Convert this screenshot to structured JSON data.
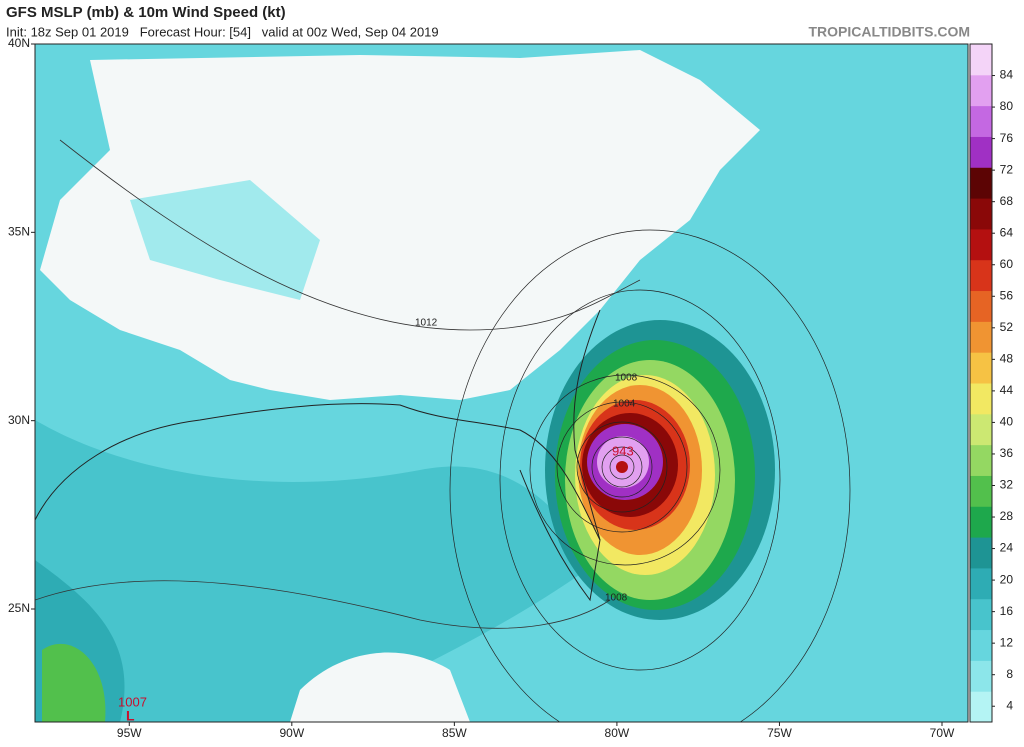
{
  "header": {
    "title": "GFS MSLP (mb) & 10m Wind Speed (kt)",
    "subtitle": "Init: 18z Sep 01 2019   Forecast Hour: [54]   valid at 00z Wed, Sep 04 2019",
    "site": "TROPICALTIDBITS.COM"
  },
  "map": {
    "xlim": [
      -97.9,
      -69.2
    ],
    "ylim": [
      22,
      40
    ],
    "xticks": [
      {
        "value": -95,
        "label": "95W"
      },
      {
        "value": -90,
        "label": "90W"
      },
      {
        "value": -85,
        "label": "85W"
      },
      {
        "value": -80,
        "label": "80W"
      },
      {
        "value": -75,
        "label": "75W"
      },
      {
        "value": -70,
        "label": "70W"
      }
    ],
    "yticks": [
      {
        "value": 25,
        "label": "25N"
      },
      {
        "value": 30,
        "label": "30N"
      },
      {
        "value": 35,
        "label": "35N"
      },
      {
        "value": 40,
        "label": "40N"
      }
    ],
    "annotations": [
      "1012",
      "1008",
      "1004",
      "943",
      "1008",
      "1007",
      "L"
    ]
  },
  "colorbar": {
    "range": [
      2,
      88
    ],
    "ticks": [
      4,
      8,
      12,
      16,
      20,
      24,
      28,
      32,
      36,
      40,
      44,
      48,
      52,
      56,
      60,
      64,
      68,
      72,
      76,
      80,
      84
    ],
    "colors": [
      "#b4f4f4",
      "#8ce6ea",
      "#66d6de",
      "#48c4cc",
      "#2eacb4",
      "#1e9494",
      "#1ea84c",
      "#52c04c",
      "#94d862",
      "#cce872",
      "#f2e862",
      "#f6c244",
      "#f09432",
      "#e66424",
      "#d8341a",
      "#b41010",
      "#8a0808",
      "#5c0404",
      "#a030c4",
      "#c468e2",
      "#e2a0f0",
      "#f4d4f8"
    ]
  }
}
